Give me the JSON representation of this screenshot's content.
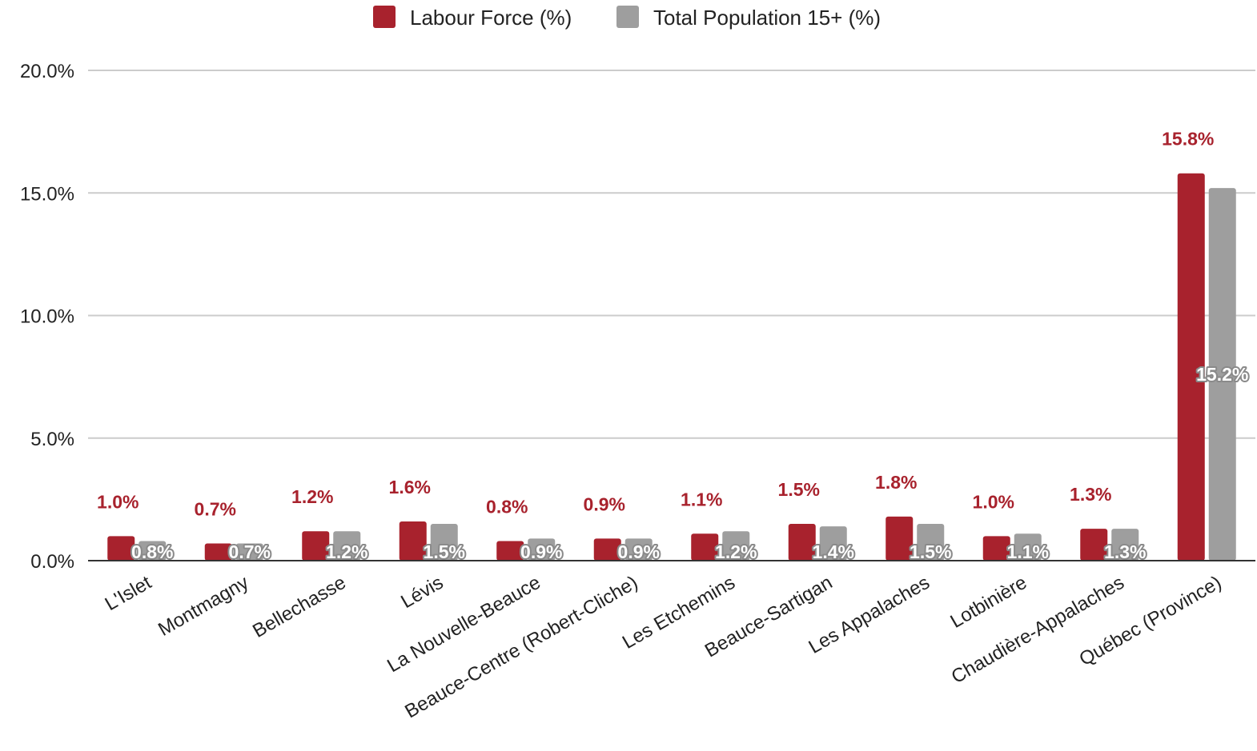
{
  "colors": {
    "labour": "#a8222d",
    "population": "#9e9e9e",
    "grid": "#cccccc",
    "axis": "#333333"
  },
  "legend": {
    "position": "top-center"
  },
  "chart_data": {
    "type": "bar",
    "title": "",
    "xlabel": "",
    "ylabel": "",
    "categories": [
      "L'Islet",
      "Montmagny",
      "Bellechasse",
      "Lévis",
      "La Nouvelle-Beauce",
      "Beauce-Centre (Robert-Cliche)",
      "Les Etchemins",
      "Beauce-Sartigan",
      "Les Appalaches",
      "Lotbinière",
      "Chaudière-Appalaches",
      "Québec (Province)"
    ],
    "series": [
      {
        "name": "Labour Force (%)",
        "values": [
          1.0,
          0.7,
          1.2,
          1.6,
          0.8,
          0.9,
          1.1,
          1.5,
          1.8,
          1.0,
          1.3,
          15.8
        ],
        "labels": [
          "1.0%",
          "0.7%",
          "1.2%",
          "1.6%",
          "0.8%",
          "0.9%",
          "1.1%",
          "1.5%",
          "1.8%",
          "1.0%",
          "1.3%",
          "15.8%"
        ]
      },
      {
        "name": "Total Population 15+ (%)",
        "values": [
          0.8,
          0.7,
          1.2,
          1.5,
          0.9,
          0.9,
          1.2,
          1.4,
          1.5,
          1.1,
          1.3,
          15.2
        ],
        "labels": [
          "0.8%",
          "0.7%",
          "1.2%",
          "1.5%",
          "0.9%",
          "0.9%",
          "1.2%",
          "1.4%",
          "1.5%",
          "1.1%",
          "1.3%",
          "15.2%"
        ]
      }
    ],
    "ylim": [
      0,
      20
    ],
    "yticks": [
      0,
      5,
      10,
      15,
      20
    ],
    "ytick_labels": [
      "0.0%",
      "5.0%",
      "10.0%",
      "15.0%",
      "20.0%"
    ],
    "grid": true
  }
}
